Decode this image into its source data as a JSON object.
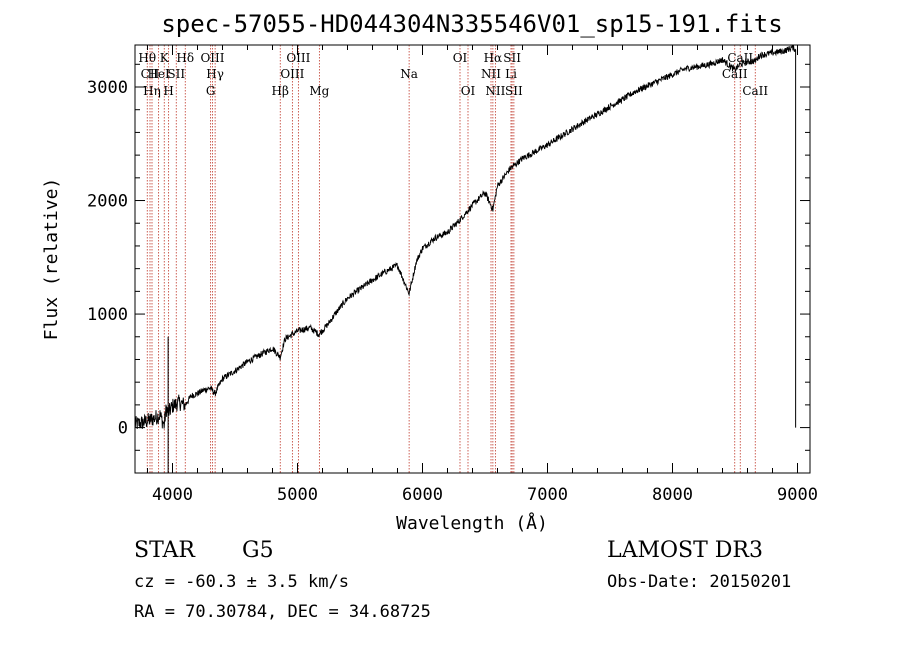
{
  "chart_data": {
    "type": "line",
    "title": "spec-57055-HD044304N335546V01_sp15-191.fits",
    "xlabel": "Wavelength (Å)",
    "ylabel": "Flux (relative)",
    "xlim": [
      3700,
      9100
    ],
    "ylim": [
      -400,
      3370
    ],
    "xticks": [
      4000,
      5000,
      6000,
      7000,
      8000,
      9000
    ],
    "xtick_labels": [
      "4000",
      "5000",
      "6000",
      "7000",
      "8000",
      "9000"
    ],
    "yticks": [
      0,
      1000,
      2000,
      3000
    ],
    "ytick_labels": [
      "0",
      "1000",
      "2000",
      "3000"
    ],
    "grid": false,
    "series": [
      {
        "name": "spectrum",
        "x": [
          3700,
          3750,
          3800,
          3850,
          3900,
          3933,
          3950,
          3968,
          4000,
          4050,
          4101,
          4150,
          4200,
          4250,
          4300,
          4340,
          4400,
          4500,
          4600,
          4700,
          4800,
          4861,
          4900,
          5000,
          5100,
          5172,
          5250,
          5300,
          5400,
          5500,
          5600,
          5700,
          5800,
          5893,
          5950,
          6000,
          6100,
          6200,
          6300,
          6400,
          6500,
          6563,
          6600,
          6700,
          6800,
          6900,
          7000,
          7100,
          7200,
          7300,
          7400,
          7500,
          7600,
          7700,
          7800,
          7900,
          8000,
          8100,
          8200,
          8300,
          8400,
          8498,
          8542,
          8600,
          8662,
          8700,
          8800,
          8900,
          8960,
          8985
        ],
        "values": [
          30,
          40,
          60,
          80,
          110,
          20,
          170,
          130,
          190,
          220,
          200,
          280,
          300,
          330,
          350,
          300,
          430,
          500,
          580,
          640,
          700,
          620,
          780,
          850,
          880,
          820,
          920,
          1000,
          1140,
          1220,
          1300,
          1370,
          1430,
          1180,
          1460,
          1580,
          1670,
          1720,
          1830,
          1960,
          2070,
          1920,
          2130,
          2280,
          2370,
          2430,
          2490,
          2560,
          2630,
          2700,
          2760,
          2830,
          2890,
          2960,
          3010,
          3060,
          3110,
          3160,
          3180,
          3200,
          3240,
          3150,
          3200,
          3220,
          3230,
          3280,
          3300,
          3320,
          3350,
          3330
        ]
      }
    ],
    "lines": [
      {
        "label": "Hθ",
        "x": 3798,
        "row": 1
      },
      {
        "label": "CII",
        "x": 3820,
        "row": 2
      },
      {
        "label": "Hη",
        "x": 3836,
        "row": 3
      },
      {
        "label": "HeI",
        "x": 3889,
        "row": 2
      },
      {
        "label": "K",
        "x": 3934,
        "row": 1
      },
      {
        "label": "H",
        "x": 3969,
        "row": 3
      },
      {
        "label": "SII",
        "x": 4030,
        "row": 2
      },
      {
        "label": "Hδ",
        "x": 4102,
        "row": 1
      },
      {
        "label": "OIII",
        "x": 4320,
        "row": 1
      },
      {
        "label": "G",
        "x": 4305,
        "row": 3
      },
      {
        "label": "Hγ",
        "x": 4341,
        "row": 2
      },
      {
        "label": "Hβ",
        "x": 4862,
        "row": 3
      },
      {
        "label": "OIII",
        "x": 4959,
        "row": 2
      },
      {
        "label": "OIII",
        "x": 5007,
        "row": 1
      },
      {
        "label": "Mg",
        "x": 5175,
        "row": 3
      },
      {
        "label": "Na",
        "x": 5893,
        "row": 2
      },
      {
        "label": "OI",
        "x": 6300,
        "row": 1
      },
      {
        "label": "OI",
        "x": 6364,
        "row": 3
      },
      {
        "label": "NII",
        "x": 6548,
        "row": 2
      },
      {
        "label": "Hα",
        "x": 6563,
        "row": 1
      },
      {
        "label": "NII",
        "x": 6583,
        "row": 3
      },
      {
        "label": "Li",
        "x": 6708,
        "row": 2
      },
      {
        "label": "SII",
        "x": 6717,
        "row": 1
      },
      {
        "label": "SII",
        "x": 6731,
        "row": 3
      },
      {
        "label": "CaII",
        "x": 8498,
        "row": 2
      },
      {
        "label": "CaII",
        "x": 8542,
        "row": 1
      },
      {
        "label": "CaII",
        "x": 8662,
        "row": 3
      }
    ]
  },
  "info": {
    "object_class": "STAR",
    "subclass": "G5",
    "survey": "LAMOST DR3",
    "redshift": "cz = -60.3 ± 3.5 km/s",
    "obs_date": "Obs-Date: 20150201",
    "coords": "RA =  70.30784, DEC =  34.68725"
  }
}
